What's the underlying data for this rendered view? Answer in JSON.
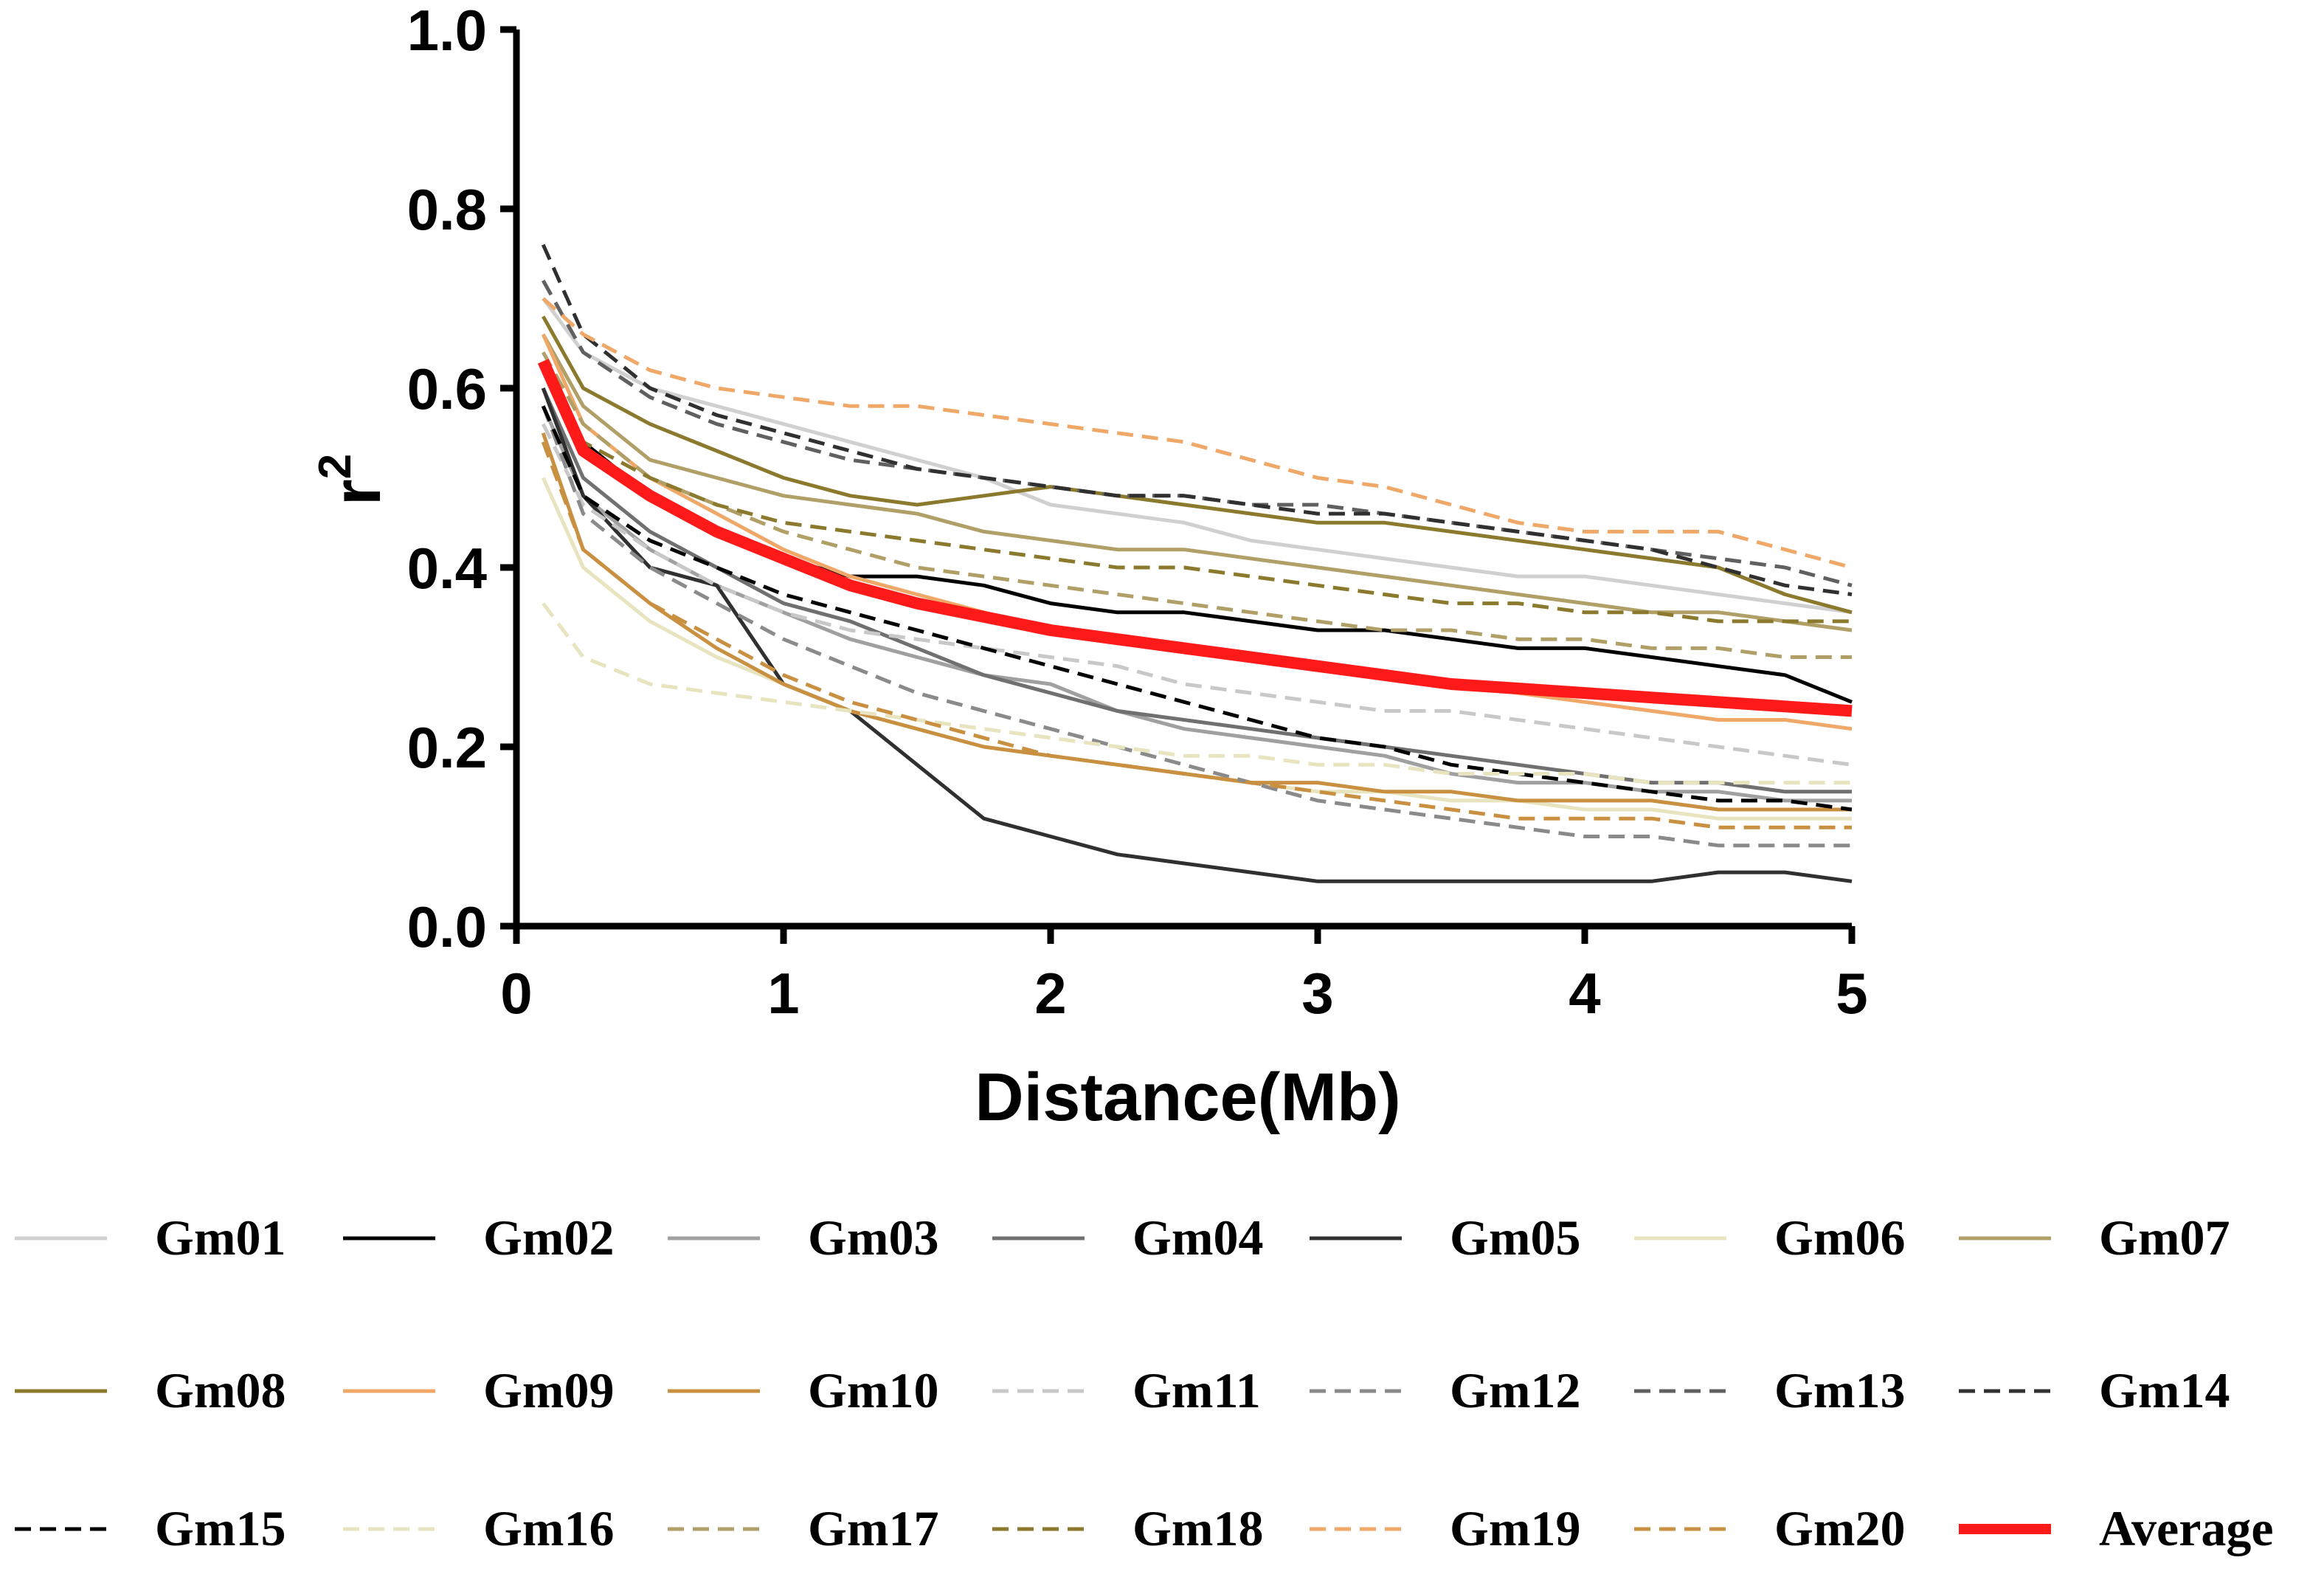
{
  "chart_data": {
    "type": "line",
    "title": "",
    "xlabel": "Distance(Mb)",
    "ylabel": "r",
    "ylabel_superscript": "2",
    "xlim": [
      0,
      5
    ],
    "ylim": [
      0,
      1.0
    ],
    "xticks": [
      "0",
      "1",
      "2",
      "3",
      "4",
      "5"
    ],
    "yticks": [
      "0.0",
      "0.2",
      "0.4",
      "0.6",
      "0.8",
      "1.0"
    ],
    "x": [
      0.1,
      0.25,
      0.5,
      0.75,
      1.0,
      1.25,
      1.5,
      1.75,
      2.0,
      2.25,
      2.5,
      2.75,
      3.0,
      3.25,
      3.5,
      3.75,
      4.0,
      4.25,
      4.5,
      4.75,
      5.0
    ],
    "series": [
      {
        "name": "Gm01",
        "color": "#d0d0d0",
        "dash": "solid",
        "width": 5,
        "values": [
          0.7,
          0.64,
          0.6,
          0.58,
          0.56,
          0.54,
          0.52,
          0.5,
          0.47,
          0.46,
          0.45,
          0.43,
          0.42,
          0.41,
          0.4,
          0.39,
          0.39,
          0.38,
          0.37,
          0.36,
          0.35
        ]
      },
      {
        "name": "Gm02",
        "color": "#000000",
        "dash": "solid",
        "width": 5,
        "values": [
          0.62,
          0.54,
          0.48,
          0.44,
          0.41,
          0.39,
          0.39,
          0.38,
          0.36,
          0.35,
          0.35,
          0.34,
          0.33,
          0.33,
          0.32,
          0.31,
          0.31,
          0.3,
          0.29,
          0.28,
          0.25
        ]
      },
      {
        "name": "Gm03",
        "color": "#a0a0a0",
        "dash": "solid",
        "width": 5,
        "values": [
          0.58,
          0.48,
          0.42,
          0.38,
          0.35,
          0.32,
          0.3,
          0.28,
          0.27,
          0.24,
          0.22,
          0.21,
          0.2,
          0.19,
          0.17,
          0.16,
          0.16,
          0.15,
          0.15,
          0.14,
          0.14
        ]
      },
      {
        "name": "Gm04",
        "color": "#707070",
        "dash": "solid",
        "width": 5,
        "values": [
          0.6,
          0.5,
          0.44,
          0.4,
          0.36,
          0.34,
          0.31,
          0.28,
          0.26,
          0.24,
          0.23,
          0.22,
          0.21,
          0.2,
          0.19,
          0.18,
          0.17,
          0.16,
          0.16,
          0.15,
          0.15
        ]
      },
      {
        "name": "Gm05",
        "color": "#303030",
        "dash": "solid",
        "width": 5,
        "values": [
          0.6,
          0.48,
          0.4,
          0.38,
          0.27,
          0.24,
          0.18,
          0.12,
          0.1,
          0.08,
          0.07,
          0.06,
          0.05,
          0.05,
          0.05,
          0.05,
          0.05,
          0.05,
          0.06,
          0.06,
          0.05
        ]
      },
      {
        "name": "Gm06",
        "color": "#e8e4c0",
        "dash": "solid",
        "width": 5,
        "values": [
          0.5,
          0.4,
          0.34,
          0.3,
          0.27,
          0.24,
          0.22,
          0.2,
          0.19,
          0.18,
          0.17,
          0.16,
          0.15,
          0.15,
          0.14,
          0.14,
          0.13,
          0.13,
          0.12,
          0.12,
          0.12
        ]
      },
      {
        "name": "Gm07",
        "color": "#b0a068",
        "dash": "solid",
        "width": 5,
        "values": [
          0.66,
          0.58,
          0.52,
          0.5,
          0.48,
          0.47,
          0.46,
          0.44,
          0.43,
          0.42,
          0.42,
          0.41,
          0.4,
          0.39,
          0.38,
          0.37,
          0.36,
          0.35,
          0.35,
          0.34,
          0.33
        ]
      },
      {
        "name": "Gm08",
        "color": "#8b7a2e",
        "dash": "solid",
        "width": 5,
        "values": [
          0.68,
          0.6,
          0.56,
          0.53,
          0.5,
          0.48,
          0.47,
          0.48,
          0.49,
          0.48,
          0.47,
          0.46,
          0.45,
          0.45,
          0.44,
          0.43,
          0.42,
          0.41,
          0.4,
          0.37,
          0.35
        ]
      },
      {
        "name": "Gm09",
        "color": "#f0a868",
        "dash": "solid",
        "width": 5,
        "values": [
          0.66,
          0.56,
          0.5,
          0.46,
          0.42,
          0.39,
          0.37,
          0.35,
          0.33,
          0.32,
          0.31,
          0.3,
          0.29,
          0.28,
          0.27,
          0.26,
          0.25,
          0.24,
          0.23,
          0.23,
          0.22
        ]
      },
      {
        "name": "Gm10",
        "color": "#c89040",
        "dash": "solid",
        "width": 5,
        "values": [
          0.55,
          0.42,
          0.36,
          0.31,
          0.27,
          0.24,
          0.22,
          0.2,
          0.19,
          0.18,
          0.17,
          0.16,
          0.16,
          0.15,
          0.15,
          0.14,
          0.14,
          0.14,
          0.13,
          0.13,
          0.13
        ]
      },
      {
        "name": "Gm11",
        "color": "#c8c8c8",
        "dash": "dashed",
        "width": 5,
        "values": [
          0.56,
          0.47,
          0.42,
          0.38,
          0.35,
          0.33,
          0.32,
          0.31,
          0.3,
          0.29,
          0.27,
          0.26,
          0.25,
          0.24,
          0.24,
          0.23,
          0.22,
          0.21,
          0.2,
          0.19,
          0.18
        ]
      },
      {
        "name": "Gm12",
        "color": "#8a8a8a",
        "dash": "dashed",
        "width": 5,
        "values": [
          0.58,
          0.46,
          0.4,
          0.36,
          0.32,
          0.29,
          0.26,
          0.24,
          0.22,
          0.2,
          0.18,
          0.16,
          0.14,
          0.13,
          0.12,
          0.11,
          0.1,
          0.1,
          0.09,
          0.09,
          0.09
        ]
      },
      {
        "name": "Gm13",
        "color": "#606060",
        "dash": "dashed",
        "width": 5,
        "values": [
          0.72,
          0.64,
          0.59,
          0.56,
          0.54,
          0.52,
          0.51,
          0.5,
          0.49,
          0.48,
          0.48,
          0.47,
          0.47,
          0.46,
          0.45,
          0.44,
          0.43,
          0.42,
          0.41,
          0.4,
          0.38
        ]
      },
      {
        "name": "Gm14",
        "color": "#303030",
        "dash": "dashed",
        "width": 5,
        "values": [
          0.76,
          0.66,
          0.6,
          0.57,
          0.55,
          0.53,
          0.51,
          0.5,
          0.49,
          0.48,
          0.48,
          0.47,
          0.46,
          0.46,
          0.45,
          0.44,
          0.43,
          0.42,
          0.4,
          0.38,
          0.37
        ]
      },
      {
        "name": "Gm15",
        "color": "#000000",
        "dash": "dashed",
        "width": 5,
        "values": [
          0.58,
          0.48,
          0.43,
          0.4,
          0.37,
          0.35,
          0.33,
          0.31,
          0.29,
          0.27,
          0.25,
          0.23,
          0.21,
          0.2,
          0.18,
          0.17,
          0.16,
          0.15,
          0.14,
          0.14,
          0.13
        ]
      },
      {
        "name": "Gm16",
        "color": "#e8e4c0",
        "dash": "dashed",
        "width": 5,
        "values": [
          0.36,
          0.3,
          0.27,
          0.26,
          0.25,
          0.24,
          0.23,
          0.22,
          0.21,
          0.2,
          0.19,
          0.19,
          0.18,
          0.18,
          0.17,
          0.17,
          0.17,
          0.16,
          0.16,
          0.16,
          0.16
        ]
      },
      {
        "name": "Gm17",
        "color": "#b0a068",
        "dash": "dashed",
        "width": 5,
        "values": [
          0.64,
          0.56,
          0.5,
          0.47,
          0.44,
          0.42,
          0.4,
          0.39,
          0.38,
          0.37,
          0.36,
          0.35,
          0.34,
          0.33,
          0.33,
          0.32,
          0.32,
          0.31,
          0.31,
          0.3,
          0.3
        ]
      },
      {
        "name": "Gm18",
        "color": "#8b7a2e",
        "dash": "dashed",
        "width": 5,
        "values": [
          0.62,
          0.54,
          0.5,
          0.47,
          0.45,
          0.44,
          0.43,
          0.42,
          0.41,
          0.4,
          0.4,
          0.39,
          0.38,
          0.37,
          0.36,
          0.36,
          0.35,
          0.35,
          0.34,
          0.34,
          0.34
        ]
      },
      {
        "name": "Gm19",
        "color": "#f0a868",
        "dash": "dashed",
        "width": 5,
        "values": [
          0.7,
          0.66,
          0.62,
          0.6,
          0.59,
          0.58,
          0.58,
          0.57,
          0.56,
          0.55,
          0.54,
          0.52,
          0.5,
          0.49,
          0.47,
          0.45,
          0.44,
          0.44,
          0.44,
          0.42,
          0.4
        ]
      },
      {
        "name": "Gm20",
        "color": "#c89040",
        "dash": "dashed",
        "width": 5,
        "values": [
          0.54,
          0.42,
          0.36,
          0.32,
          0.28,
          0.25,
          0.23,
          0.21,
          0.19,
          0.18,
          0.17,
          0.16,
          0.15,
          0.14,
          0.13,
          0.12,
          0.12,
          0.12,
          0.11,
          0.11,
          0.11
        ]
      },
      {
        "name": "Average",
        "color": "#ff1a1a",
        "dash": "solid",
        "width": 16,
        "values": [
          0.63,
          0.53,
          0.48,
          0.44,
          0.41,
          0.38,
          0.36,
          0.345,
          0.33,
          0.32,
          0.31,
          0.3,
          0.29,
          0.28,
          0.27,
          0.265,
          0.26,
          0.255,
          0.25,
          0.245,
          0.24
        ]
      }
    ]
  }
}
